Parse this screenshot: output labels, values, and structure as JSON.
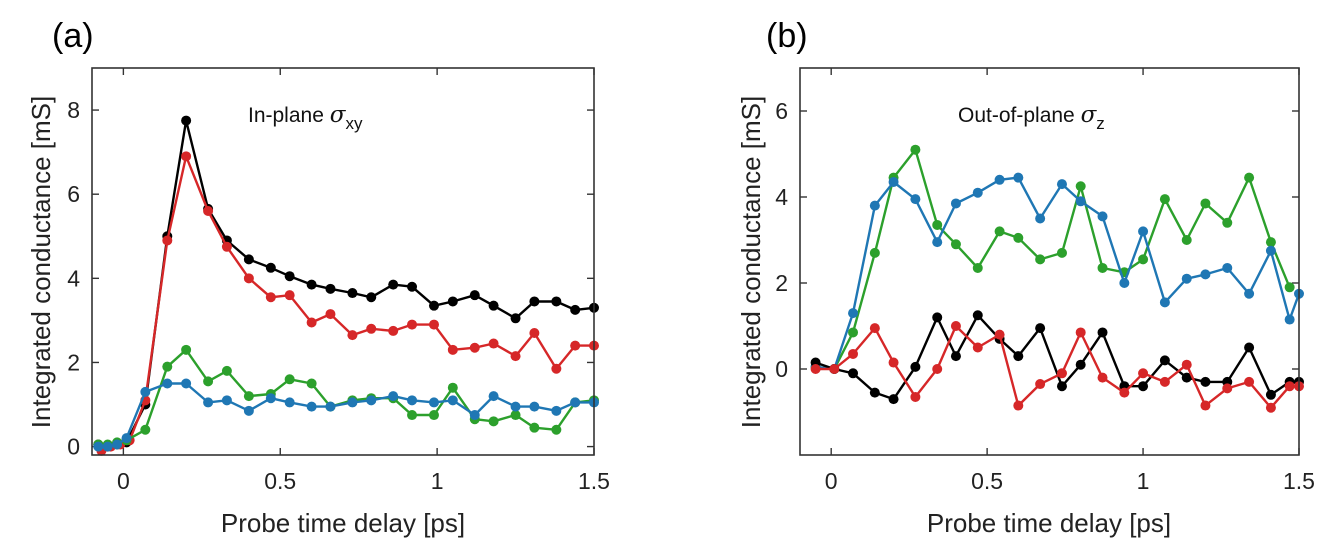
{
  "chart_data": [
    {
      "type": "line",
      "panel": "(a)",
      "annotation": {
        "text": "In-plane ",
        "symbol": "σ",
        "subscript": "xy"
      },
      "xlabel": "Probe time delay [ps]",
      "ylabel": "Integrated conductance [mS]",
      "xlim": [
        -0.1,
        1.5
      ],
      "ylim": [
        -0.2,
        9.0
      ],
      "xticks": [
        0,
        0.5,
        1,
        1.5
      ],
      "xtick_labels": [
        "0",
        "0.5",
        "1",
        "1.5"
      ],
      "yticks": [
        0,
        2,
        4,
        6,
        8
      ],
      "ytick_labels": [
        "0",
        "2",
        "4",
        "6",
        "8"
      ],
      "grid": false,
      "series": [
        {
          "color": "#000000",
          "x": [
            -0.08,
            -0.05,
            -0.02,
            0.01,
            0.07,
            0.14,
            0.2,
            0.27,
            0.33,
            0.4,
            0.47,
            0.53,
            0.6,
            0.66,
            0.73,
            0.79,
            0.86,
            0.92,
            0.99,
            1.05,
            1.12,
            1.18,
            1.25,
            1.31,
            1.38,
            1.44,
            1.5
          ],
          "y": [
            0.05,
            0.0,
            0.05,
            0.1,
            1.0,
            5.0,
            7.75,
            5.65,
            4.9,
            4.45,
            4.25,
            4.05,
            3.85,
            3.75,
            3.65,
            3.55,
            3.85,
            3.8,
            3.35,
            3.45,
            3.6,
            3.35,
            3.05,
            3.45,
            3.45,
            3.25,
            3.3
          ]
        },
        {
          "color": "#d62728",
          "x": [
            -0.07,
            -0.04,
            -0.01,
            0.02,
            0.07,
            0.14,
            0.2,
            0.27,
            0.33,
            0.4,
            0.47,
            0.53,
            0.6,
            0.66,
            0.73,
            0.79,
            0.86,
            0.92,
            0.99,
            1.05,
            1.12,
            1.18,
            1.25,
            1.31,
            1.38,
            1.44,
            1.5
          ],
          "y": [
            -0.1,
            0.0,
            0.05,
            0.15,
            1.1,
            4.9,
            6.9,
            5.6,
            4.75,
            4.0,
            3.55,
            3.6,
            2.95,
            3.15,
            2.65,
            2.8,
            2.75,
            2.9,
            2.9,
            2.3,
            2.35,
            2.45,
            2.15,
            2.7,
            1.85,
            2.4,
            2.4
          ]
        },
        {
          "color": "#2ca02c",
          "x": [
            -0.08,
            -0.05,
            -0.02,
            0.01,
            0.07,
            0.14,
            0.2,
            0.27,
            0.33,
            0.4,
            0.47,
            0.53,
            0.6,
            0.66,
            0.73,
            0.79,
            0.86,
            0.92,
            0.99,
            1.05,
            1.12,
            1.18,
            1.25,
            1.31,
            1.38,
            1.44,
            1.5
          ],
          "y": [
            0.05,
            0.05,
            0.1,
            0.15,
            0.4,
            1.9,
            2.3,
            1.55,
            1.8,
            1.2,
            1.25,
            1.6,
            1.5,
            0.95,
            1.1,
            1.15,
            1.15,
            0.75,
            0.75,
            1.4,
            0.65,
            0.6,
            0.75,
            0.45,
            0.4,
            1.05,
            1.1
          ]
        },
        {
          "color": "#1f77b4",
          "x": [
            -0.08,
            -0.05,
            -0.02,
            0.01,
            0.07,
            0.14,
            0.2,
            0.27,
            0.33,
            0.4,
            0.47,
            0.53,
            0.6,
            0.66,
            0.73,
            0.79,
            0.86,
            0.92,
            0.99,
            1.05,
            1.12,
            1.18,
            1.25,
            1.31,
            1.38,
            1.44,
            1.5
          ],
          "y": [
            0.0,
            0.0,
            0.05,
            0.2,
            1.3,
            1.5,
            1.5,
            1.05,
            1.1,
            0.85,
            1.15,
            1.05,
            0.95,
            0.95,
            1.05,
            1.1,
            1.2,
            1.1,
            1.05,
            1.1,
            0.75,
            1.2,
            0.95,
            0.95,
            0.85,
            1.05,
            1.05
          ]
        }
      ]
    },
    {
      "type": "line",
      "panel": "(b)",
      "annotation": {
        "text": "Out-of-plane ",
        "symbol": "σ",
        "subscript": "z"
      },
      "xlabel": "Probe time delay [ps]",
      "ylabel": "Integrated conductance [mS]",
      "xlim": [
        -0.1,
        1.5
      ],
      "ylim": [
        -2.0,
        7.0
      ],
      "xticks": [
        0,
        0.5,
        1,
        1.5
      ],
      "xtick_labels": [
        "0",
        "0.5",
        "1",
        "1.5"
      ],
      "yticks": [
        0,
        2,
        4,
        6
      ],
      "ytick_labels": [
        "0",
        "2",
        "4",
        "6"
      ],
      "grid": false,
      "series": [
        {
          "color": "#2ca02c",
          "x": [
            -0.05,
            0.01,
            0.07,
            0.14,
            0.2,
            0.27,
            0.34,
            0.4,
            0.47,
            0.54,
            0.6,
            0.67,
            0.74,
            0.8,
            0.87,
            0.94,
            1.0,
            1.07,
            1.14,
            1.2,
            1.27,
            1.34,
            1.41,
            1.47
          ],
          "y": [
            0.05,
            0.0,
            0.85,
            2.7,
            4.45,
            5.1,
            3.35,
            2.9,
            2.35,
            3.2,
            3.05,
            2.55,
            2.7,
            4.25,
            2.35,
            2.25,
            2.55,
            3.95,
            3.0,
            3.85,
            3.4,
            4.45,
            2.95,
            1.9
          ]
        },
        {
          "color": "#1f77b4",
          "x": [
            -0.05,
            0.01,
            0.07,
            0.14,
            0.2,
            0.27,
            0.34,
            0.4,
            0.47,
            0.54,
            0.6,
            0.67,
            0.74,
            0.8,
            0.87,
            0.94,
            1.0,
            1.07,
            1.14,
            1.2,
            1.27,
            1.34,
            1.41,
            1.47,
            1.5
          ],
          "y": [
            0.05,
            0.0,
            1.3,
            3.8,
            4.35,
            3.95,
            2.95,
            3.85,
            4.1,
            4.4,
            4.45,
            3.5,
            4.3,
            3.9,
            3.55,
            2.0,
            3.2,
            1.55,
            2.1,
            2.2,
            2.35,
            1.75,
            2.75,
            1.15,
            1.75
          ]
        },
        {
          "color": "#000000",
          "x": [
            -0.05,
            0.01,
            0.07,
            0.14,
            0.2,
            0.27,
            0.34,
            0.4,
            0.47,
            0.54,
            0.6,
            0.67,
            0.74,
            0.8,
            0.87,
            0.94,
            1.0,
            1.07,
            1.14,
            1.2,
            1.27,
            1.34,
            1.41,
            1.47,
            1.5
          ],
          "y": [
            0.15,
            0.0,
            -0.1,
            -0.55,
            -0.7,
            0.05,
            1.2,
            0.3,
            1.25,
            0.7,
            0.3,
            0.95,
            -0.4,
            0.1,
            0.85,
            -0.4,
            -0.4,
            0.2,
            -0.2,
            -0.3,
            -0.3,
            0.5,
            -0.6,
            -0.3,
            -0.3
          ]
        },
        {
          "color": "#d62728",
          "x": [
            -0.05,
            0.01,
            0.07,
            0.14,
            0.2,
            0.27,
            0.34,
            0.4,
            0.47,
            0.54,
            0.6,
            0.67,
            0.74,
            0.8,
            0.87,
            0.94,
            1.0,
            1.07,
            1.14,
            1.2,
            1.27,
            1.34,
            1.41,
            1.47,
            1.5
          ],
          "y": [
            0.0,
            0.0,
            0.35,
            0.95,
            0.15,
            -0.65,
            0.0,
            1.0,
            0.5,
            0.8,
            -0.85,
            -0.35,
            -0.1,
            0.85,
            -0.2,
            -0.55,
            -0.1,
            -0.3,
            0.1,
            -0.85,
            -0.45,
            -0.3,
            -0.9,
            -0.4,
            -0.4
          ]
        }
      ]
    }
  ]
}
